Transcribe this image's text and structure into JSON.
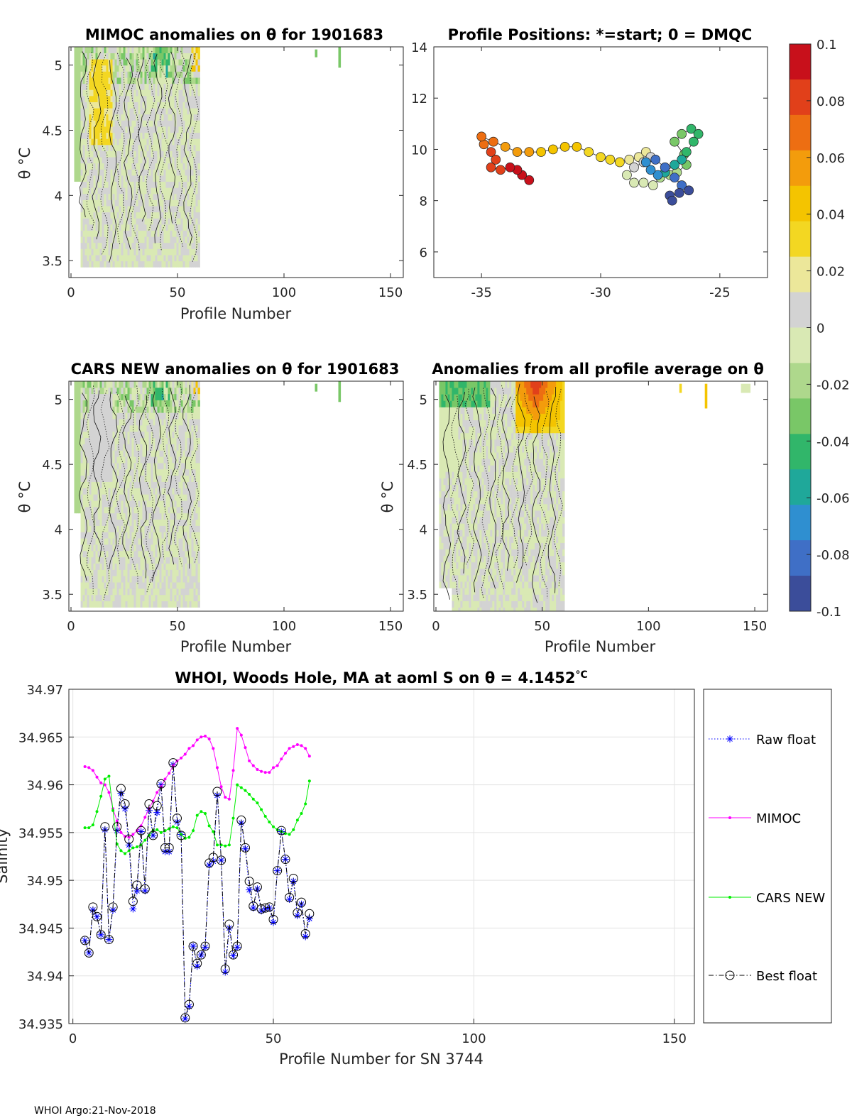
{
  "footer": "WHOI Argo:21-Nov-2018",
  "colorbar": {
    "ticks": [
      0.1,
      0.08,
      0.06,
      0.04,
      0.02,
      0,
      -0.02,
      -0.04,
      -0.06,
      -0.08,
      -0.1
    ],
    "tick_labels": [
      "0.1",
      "0.08",
      "0.06",
      "0.04",
      "0.02",
      "0",
      "-0.02",
      "-0.04",
      "-0.06",
      "-0.08",
      "-0.1"
    ],
    "colors": [
      "#3b4d9a",
      "#3f6fc6",
      "#2f8fd0",
      "#1fa89a",
      "#31b66a",
      "#79c767",
      "#aed88c",
      "#d9e9b4",
      "#d3d3d3",
      "#ece79a",
      "#f3d722",
      "#f4c400",
      "#f39c0c",
      "#ed6e12",
      "#e1401a",
      "#c8101b"
    ]
  },
  "chart_data": [
    {
      "type": "heatmap",
      "title": "MIMOC anomalies on θ  for 1901683",
      "xlabel": "Profile Number",
      "ylabel": "θ °C",
      "xlim": [
        -1,
        156
      ],
      "ylim": [
        3.37,
        5.14
      ],
      "xticks": [
        0,
        50,
        100,
        150
      ],
      "xtick_labels": [
        "0",
        "50",
        "100",
        "150"
      ],
      "yticks": [
        3.5,
        4,
        4.5,
        5
      ],
      "ytick_labels": [
        "3.5",
        "4",
        "4.5",
        "5"
      ],
      "data_range": {
        "profiles": [
          2,
          60
        ],
        "theta": [
          3.45,
          5.14
        ]
      }
    },
    {
      "type": "scatter",
      "title": "Profile Positions: *=start; 0 = DMQC",
      "xlabel": "",
      "ylabel": "",
      "xlim": [
        -37,
        -23
      ],
      "ylim": [
        5,
        14
      ],
      "xticks": [
        -35,
        -30,
        -25
      ],
      "xtick_labels": [
        "-35",
        "-30",
        "-25"
      ],
      "yticks": [
        6,
        8,
        10,
        12,
        14
      ],
      "ytick_labels": [
        "6",
        "8",
        "10",
        "12",
        "14"
      ],
      "track": [
        [
          -33.0,
          8.8
        ],
        [
          -33.3,
          9.0
        ],
        [
          -33.5,
          9.2
        ],
        [
          -33.8,
          9.3
        ],
        [
          -34.2,
          9.2
        ],
        [
          -34.6,
          9.3
        ],
        [
          -34.4,
          9.6
        ],
        [
          -34.6,
          9.9
        ],
        [
          -34.9,
          10.2
        ],
        [
          -35.0,
          10.5
        ],
        [
          -34.5,
          10.3
        ],
        [
          -34.0,
          10.1
        ],
        [
          -33.5,
          9.9
        ],
        [
          -33.0,
          9.9
        ],
        [
          -32.5,
          9.9
        ],
        [
          -32.0,
          10.0
        ],
        [
          -31.5,
          10.1
        ],
        [
          -31.0,
          10.1
        ],
        [
          -30.5,
          9.9
        ],
        [
          -30.0,
          9.7
        ],
        [
          -29.6,
          9.6
        ],
        [
          -29.2,
          9.5
        ],
        [
          -28.8,
          9.6
        ],
        [
          -28.4,
          9.7
        ],
        [
          -28.1,
          9.9
        ],
        [
          -27.9,
          9.7
        ],
        [
          -28.2,
          9.5
        ],
        [
          -28.6,
          9.3
        ],
        [
          -28.9,
          9.0
        ],
        [
          -28.6,
          8.7
        ],
        [
          -28.2,
          8.7
        ],
        [
          -27.8,
          8.6
        ],
        [
          -27.5,
          8.9
        ],
        [
          -27.1,
          9.0
        ],
        [
          -26.8,
          9.1
        ],
        [
          -26.4,
          9.4
        ],
        [
          -26.5,
          9.8
        ],
        [
          -26.9,
          10.3
        ],
        [
          -26.6,
          10.6
        ],
        [
          -26.2,
          10.8
        ],
        [
          -25.9,
          10.6
        ],
        [
          -26.1,
          10.3
        ],
        [
          -26.4,
          9.9
        ],
        [
          -26.6,
          9.6
        ],
        [
          -26.9,
          9.4
        ],
        [
          -27.3,
          9.1
        ],
        [
          -27.6,
          9.0
        ],
        [
          -27.9,
          9.2
        ],
        [
          -28.1,
          9.5
        ],
        [
          -27.7,
          9.6
        ],
        [
          -27.3,
          9.3
        ],
        [
          -26.9,
          8.9
        ],
        [
          -26.6,
          8.6
        ],
        [
          -26.3,
          8.4
        ],
        [
          -26.7,
          8.3
        ],
        [
          -27.1,
          8.2
        ],
        [
          -27.0,
          8.0
        ]
      ]
    },
    {
      "type": "heatmap",
      "title": "CARS NEW anomalies on θ for 1901683",
      "xlabel": "Profile Number",
      "ylabel": "θ °C",
      "xlim": [
        -1,
        156
      ],
      "ylim": [
        3.37,
        5.14
      ],
      "xticks": [
        0,
        50,
        100,
        150
      ],
      "xtick_labels": [
        "0",
        "50",
        "100",
        "150"
      ],
      "yticks": [
        3.5,
        4,
        4.5,
        5
      ],
      "ytick_labels": [
        "3.5",
        "4",
        "4.5",
        "5"
      ],
      "data_range": {
        "profiles": [
          2,
          60
        ],
        "theta": [
          3.4,
          5.14
        ]
      }
    },
    {
      "type": "heatmap",
      "title": "Anomalies from all profile average on θ",
      "xlabel": "Profile Number",
      "ylabel": "θ °C",
      "xlim": [
        -1,
        156
      ],
      "ylim": [
        3.37,
        5.14
      ],
      "xticks": [
        0,
        50,
        100,
        150
      ],
      "xtick_labels": [
        "0",
        "50",
        "100",
        "150"
      ],
      "yticks": [
        3.5,
        4,
        4.5,
        5
      ],
      "ytick_labels": [
        "3.5",
        "4",
        "4.5",
        "5"
      ],
      "data_range": {
        "profiles": [
          2,
          60
        ],
        "theta": [
          3.35,
          5.14
        ]
      }
    },
    {
      "type": "line",
      "title": "WHOI, Woods Hole, MA at aoml S on θ = 4.1452",
      "title_unit": "°C",
      "xlabel": "Profile Number for SN 3744",
      "ylabel": "Salinity",
      "xlim": [
        -1,
        155
      ],
      "ylim": [
        34.935,
        34.97
      ],
      "xticks": [
        0,
        50,
        100,
        150
      ],
      "xtick_labels": [
        "0",
        "50",
        "100",
        "150"
      ],
      "yticks": [
        34.935,
        34.94,
        34.945,
        34.95,
        34.955,
        34.96,
        34.965,
        34.97
      ],
      "ytick_labels": [
        "34.935",
        "34.94",
        "34.945",
        "34.95",
        "34.955",
        "34.96",
        "34.965",
        "34.97"
      ],
      "legend_position": "outside-right",
      "series": [
        {
          "name": "Raw float",
          "x": [
            3,
            4,
            5,
            6,
            7,
            8,
            9,
            10,
            11,
            12,
            13,
            14,
            15,
            16,
            17,
            18,
            19,
            20,
            21,
            22,
            23,
            24,
            25,
            26,
            27,
            28,
            29,
            30,
            31,
            32,
            33,
            34,
            35,
            36,
            37,
            38,
            39,
            40,
            41,
            42,
            43,
            44,
            45,
            46,
            47,
            48,
            49,
            50,
            51,
            52,
            53,
            54,
            55,
            56,
            57,
            58,
            59
          ],
          "values": [
            34.9437,
            34.9424,
            34.9469,
            34.9462,
            34.9443,
            34.9553,
            34.9438,
            34.9469,
            34.9552,
            34.9591,
            34.9575,
            34.9537,
            34.947,
            34.9489,
            34.9551,
            34.9489,
            34.9573,
            34.9547,
            34.9571,
            34.96,
            34.953,
            34.953,
            34.9621,
            34.9561,
            34.9548,
            34.9355,
            34.9368,
            34.9431,
            34.941,
            34.9422,
            34.943,
            34.9516,
            34.952,
            34.9589,
            34.9521,
            34.9404,
            34.945,
            34.9421,
            34.943,
            34.956,
            34.9533,
            34.949,
            34.9471,
            34.9491,
            34.9468,
            34.947,
            34.9471,
            34.9456,
            34.951,
            34.9551,
            34.9522,
            34.948,
            34.9499,
            34.9463,
            34.9475,
            34.9441,
            34.946
          ]
        },
        {
          "name": "MIMOC",
          "x": [
            3,
            4,
            5,
            6,
            7,
            8,
            9,
            10,
            11,
            12,
            13,
            14,
            15,
            16,
            17,
            18,
            19,
            20,
            21,
            22,
            23,
            24,
            25,
            26,
            27,
            28,
            29,
            30,
            31,
            32,
            33,
            34,
            35,
            36,
            37,
            38,
            39,
            40,
            41,
            42,
            43,
            44,
            45,
            46,
            47,
            48,
            49,
            50,
            51,
            52,
            53,
            54,
            55,
            56,
            57,
            58,
            59
          ],
          "values": [
            34.9619,
            34.9618,
            34.9615,
            34.9608,
            34.9602,
            34.96,
            34.9592,
            34.9575,
            34.9562,
            34.955,
            34.9546,
            34.9545,
            34.9548,
            34.9552,
            34.9557,
            34.9566,
            34.9575,
            34.9583,
            34.9592,
            34.9598,
            34.9606,
            34.9612,
            34.962,
            34.9625,
            34.9628,
            34.9632,
            34.9638,
            34.9641,
            34.9647,
            34.965,
            34.9651,
            34.9648,
            34.9638,
            34.9618,
            34.9598,
            34.9587,
            34.9585,
            34.9615,
            34.9659,
            34.9652,
            34.9639,
            34.9625,
            34.962,
            34.9616,
            34.9614,
            34.9613,
            34.9613,
            34.9618,
            34.962,
            34.9627,
            34.9633,
            34.9638,
            34.964,
            34.9642,
            34.9641,
            34.9638,
            34.963
          ]
        },
        {
          "name": "CARS NEW",
          "x": [
            3,
            4,
            5,
            6,
            7,
            8,
            9,
            10,
            11,
            12,
            13,
            14,
            15,
            16,
            17,
            18,
            19,
            20,
            21,
            22,
            23,
            24,
            25,
            26,
            27,
            28,
            29,
            30,
            31,
            32,
            33,
            34,
            35,
            36,
            37,
            38,
            39,
            40,
            41,
            42,
            43,
            44,
            45,
            46,
            47,
            48,
            49,
            50,
            51,
            52,
            53,
            54,
            55,
            56,
            57,
            58,
            59
          ],
          "values": [
            34.9555,
            34.9555,
            34.9558,
            34.9572,
            34.9588,
            34.9606,
            34.9609,
            34.9573,
            34.9538,
            34.9531,
            34.9528,
            34.9531,
            34.9534,
            34.9535,
            34.9537,
            34.9542,
            34.9547,
            34.9552,
            34.9553,
            34.955,
            34.9552,
            34.9554,
            34.9556,
            34.9555,
            34.9548,
            34.9544,
            34.9545,
            34.9552,
            34.9568,
            34.9572,
            34.957,
            34.9557,
            34.9551,
            34.9537,
            34.9537,
            34.9536,
            34.9537,
            34.9565,
            34.96,
            34.9597,
            34.9594,
            34.959,
            34.9585,
            34.9581,
            34.9574,
            34.9567,
            34.9561,
            34.9556,
            34.9553,
            34.9551,
            34.9549,
            34.9548,
            34.9553,
            34.9563,
            34.957,
            34.958,
            34.9604
          ]
        },
        {
          "name": "Best float",
          "x": [
            3,
            4,
            5,
            6,
            7,
            8,
            9,
            10,
            11,
            12,
            13,
            14,
            15,
            16,
            17,
            18,
            19,
            20,
            21,
            22,
            23,
            24,
            25,
            26,
            27,
            28,
            29,
            30,
            31,
            32,
            33,
            34,
            35,
            36,
            37,
            38,
            39,
            40,
            41,
            42,
            43,
            44,
            45,
            46,
            47,
            48,
            49,
            50,
            51,
            52,
            53,
            54,
            55,
            56,
            57,
            58,
            59
          ],
          "values": [
            34.9437,
            34.9424,
            34.9472,
            34.9462,
            34.9443,
            34.9556,
            34.9438,
            34.9472,
            34.9556,
            34.9596,
            34.958,
            34.9543,
            34.9478,
            34.9495,
            34.9552,
            34.9491,
            34.958,
            34.9547,
            34.9578,
            34.9601,
            34.9534,
            34.9534,
            34.9623,
            34.9565,
            34.9547,
            34.9356,
            34.937,
            34.9431,
            34.9413,
            34.9422,
            34.9431,
            34.9518,
            34.9524,
            34.9593,
            34.9521,
            34.9407,
            34.9454,
            34.9422,
            34.9431,
            34.9563,
            34.9534,
            34.9499,
            34.9473,
            34.9493,
            34.947,
            34.9471,
            34.9472,
            34.9459,
            34.951,
            34.9552,
            34.9522,
            34.9482,
            34.9502,
            34.9466,
            34.9477,
            34.9444,
            34.9465
          ]
        }
      ]
    }
  ]
}
